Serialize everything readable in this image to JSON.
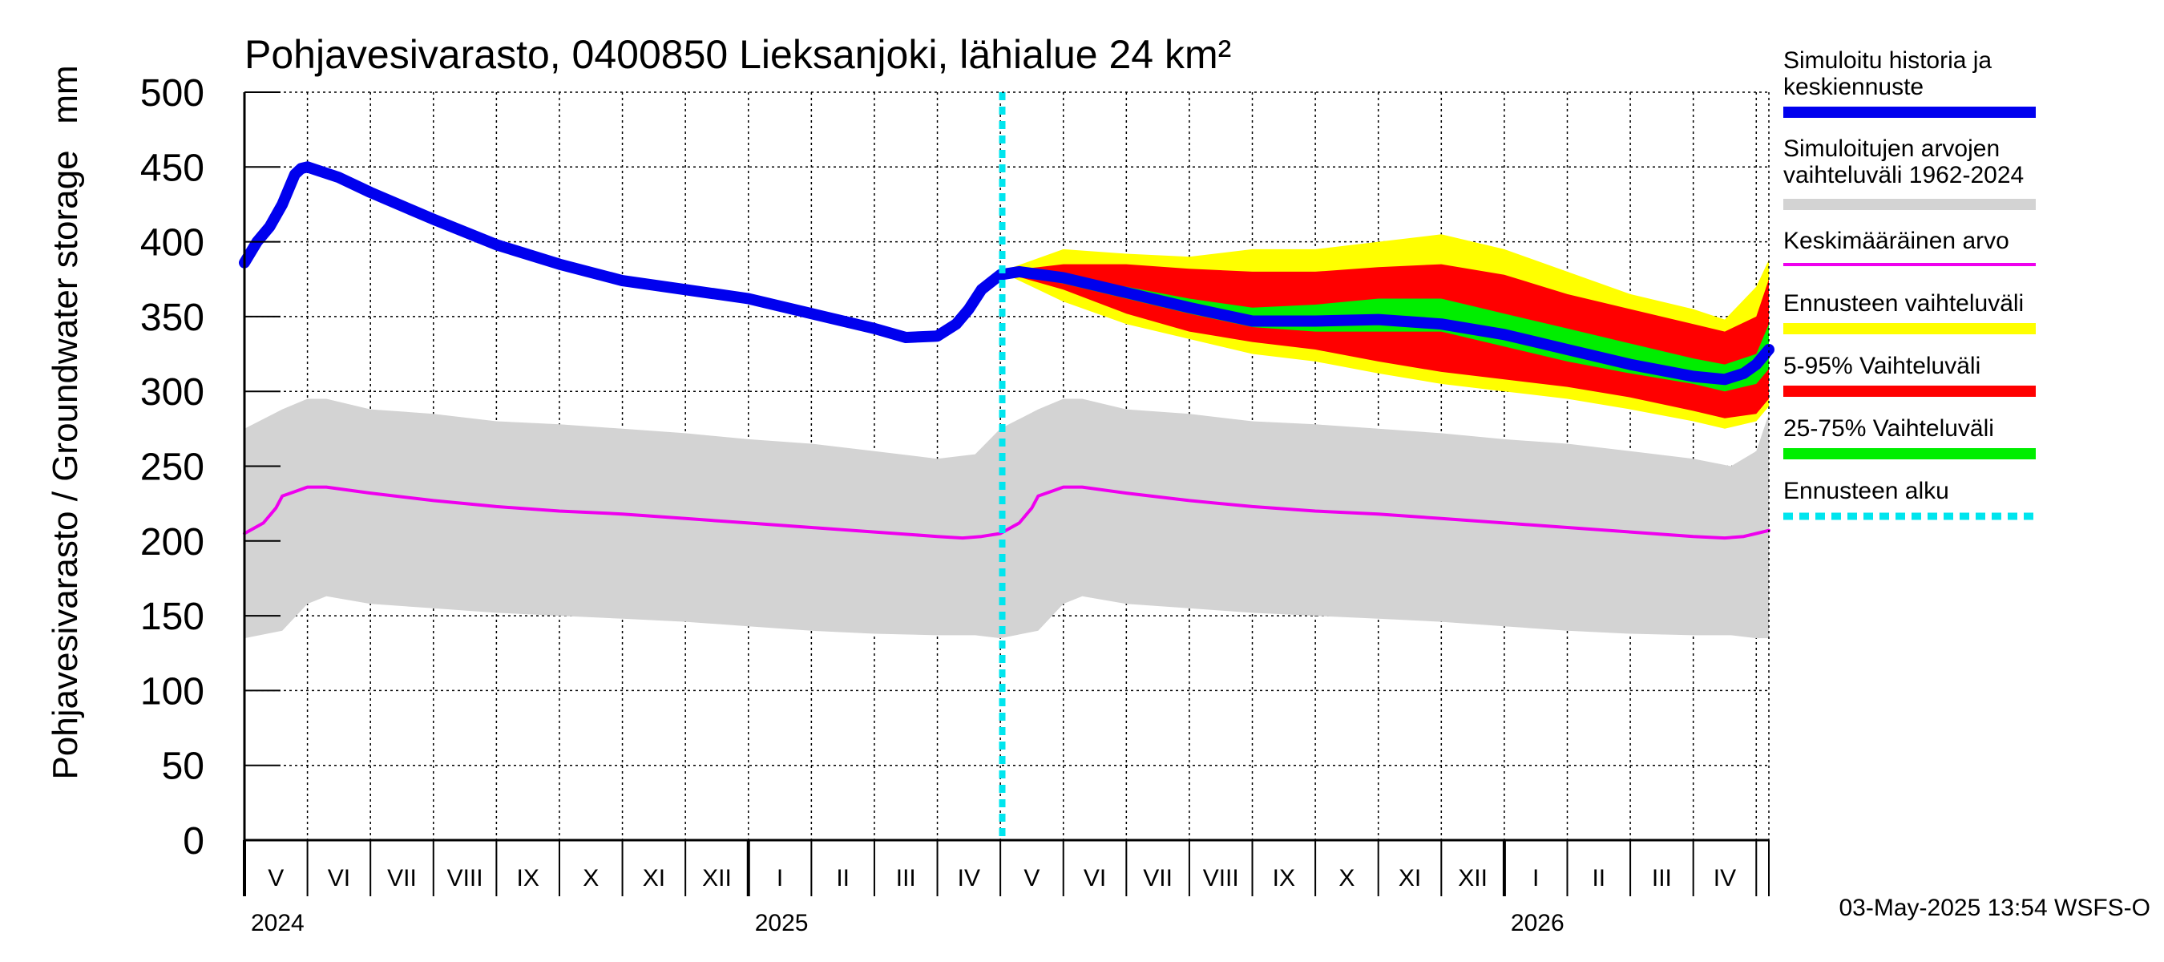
{
  "chart_data": {
    "type": "line",
    "title": "Pohjavesivarasto, 0400850 Lieksanjoki, lähialue 24 km²",
    "unit_label": "mm",
    "ylabel": "Pohjavesivarasto / Groundwater storage",
    "ylim": [
      0,
      500
    ],
    "y_ticks": [
      "0",
      "50",
      "100",
      "150",
      "200",
      "250",
      "300",
      "350",
      "400",
      "450",
      "500"
    ],
    "xlim": [
      0,
      24.2
    ],
    "months": [
      {
        "label": "V",
        "start": 0,
        "end": 1
      },
      {
        "label": "VI",
        "start": 1,
        "end": 2
      },
      {
        "label": "VII",
        "start": 2,
        "end": 3
      },
      {
        "label": "VIII",
        "start": 3,
        "end": 4
      },
      {
        "label": "IX",
        "start": 4,
        "end": 5
      },
      {
        "label": "X",
        "start": 5,
        "end": 6
      },
      {
        "label": "XI",
        "start": 6,
        "end": 7
      },
      {
        "label": "XII",
        "start": 7,
        "end": 8
      },
      {
        "label": "I",
        "start": 8,
        "end": 9
      },
      {
        "label": "II",
        "start": 9,
        "end": 10
      },
      {
        "label": "III",
        "start": 10,
        "end": 11
      },
      {
        "label": "IV",
        "start": 11,
        "end": 12
      },
      {
        "label": "V",
        "start": 12,
        "end": 13
      },
      {
        "label": "VI",
        "start": 13,
        "end": 14
      },
      {
        "label": "VII",
        "start": 14,
        "end": 15
      },
      {
        "label": "VIII",
        "start": 15,
        "end": 16
      },
      {
        "label": "IX",
        "start": 16,
        "end": 17
      },
      {
        "label": "X",
        "start": 17,
        "end": 18
      },
      {
        "label": "XI",
        "start": 18,
        "end": 19
      },
      {
        "label": "XII",
        "start": 19,
        "end": 20
      },
      {
        "label": "I",
        "start": 20,
        "end": 21
      },
      {
        "label": "II",
        "start": 21,
        "end": 22
      },
      {
        "label": "III",
        "start": 22,
        "end": 23
      },
      {
        "label": "IV",
        "start": 23,
        "end": 24
      },
      {
        "label": "",
        "start": 24,
        "end": 24.2
      }
    ],
    "years": [
      {
        "label": "2024",
        "at": 0
      },
      {
        "label": "2025",
        "at": 8
      },
      {
        "label": "2026",
        "at": 20
      }
    ],
    "forecast_start": 12.03,
    "series": [
      {
        "name": "Simuloitujen arvojen vaihteluväli 1962-2024",
        "kind": "band",
        "color": "#d3d3d3",
        "x": [
          0,
          0.6,
          1.0,
          1.3,
          2.0,
          3.0,
          4.0,
          5.0,
          6.0,
          7.0,
          8.0,
          9.0,
          10.0,
          11.0,
          11.6,
          12.0,
          12.6,
          13.0,
          13.3,
          14.0,
          15.0,
          16.0,
          17.0,
          18.0,
          19.0,
          20.0,
          21.0,
          22.0,
          23.0,
          23.6,
          24.0,
          24.2
        ],
        "upper": [
          275,
          288,
          295,
          295,
          288,
          285,
          280,
          278,
          275,
          272,
          268,
          265,
          260,
          255,
          258,
          275,
          288,
          295,
          295,
          288,
          285,
          280,
          278,
          275,
          272,
          268,
          265,
          260,
          255,
          250,
          260,
          285
        ],
        "lower": [
          135,
          140,
          158,
          163,
          158,
          155,
          152,
          150,
          148,
          146,
          143,
          140,
          138,
          137,
          137,
          135,
          140,
          158,
          163,
          158,
          155,
          152,
          150,
          148,
          146,
          143,
          140,
          138,
          137,
          137,
          135,
          135
        ]
      },
      {
        "name": "Ennusteen vaihteluväli",
        "kind": "band",
        "color": "#ffff00",
        "x": [
          12.0,
          13.0,
          14.0,
          15.0,
          16.0,
          17.0,
          18.0,
          19.0,
          20.0,
          21.0,
          22.0,
          23.0,
          23.5,
          24.0,
          24.2
        ],
        "upper": [
          380,
          395,
          392,
          390,
          395,
          395,
          400,
          405,
          395,
          380,
          365,
          355,
          348,
          370,
          388
        ],
        "lower": [
          380,
          360,
          345,
          335,
          325,
          320,
          312,
          305,
          300,
          295,
          288,
          280,
          275,
          280,
          290
        ]
      },
      {
        "name": "5-95% Vaihteluväli",
        "kind": "band",
        "color": "#ff0000",
        "x": [
          12.0,
          13.0,
          14.0,
          15.0,
          16.0,
          17.0,
          18.0,
          19.0,
          20.0,
          21.0,
          22.0,
          23.0,
          23.5,
          24.0,
          24.2
        ],
        "upper": [
          380,
          385,
          385,
          382,
          380,
          380,
          383,
          385,
          378,
          365,
          355,
          345,
          340,
          350,
          375
        ],
        "lower": [
          380,
          368,
          352,
          340,
          333,
          328,
          320,
          313,
          308,
          303,
          296,
          287,
          282,
          285,
          295
        ]
      },
      {
        "name": "25-75% Vaihteluväli",
        "kind": "band",
        "color": "#00ee00",
        "x": [
          12.0,
          13.0,
          14.0,
          15.0,
          16.0,
          17.0,
          18.0,
          19.0,
          20.0,
          21.0,
          22.0,
          23.0,
          23.5,
          24.0,
          24.2
        ],
        "upper": [
          380,
          376,
          370,
          362,
          356,
          358,
          362,
          362,
          352,
          342,
          332,
          322,
          318,
          325,
          345
        ],
        "lower": [
          380,
          372,
          362,
          352,
          343,
          340,
          340,
          340,
          330,
          320,
          312,
          305,
          300,
          305,
          315
        ]
      },
      {
        "name": "Keskimääräinen arvo",
        "kind": "line",
        "color": "#ee00ee",
        "width": 4,
        "x": [
          0,
          0.3,
          0.5,
          0.6,
          0.8,
          1.0,
          1.3,
          2.0,
          3.0,
          4.0,
          5.0,
          6.0,
          7.0,
          8.0,
          9.0,
          10.0,
          11.0,
          11.4,
          11.7,
          12.0,
          12.3,
          12.5,
          12.6,
          12.8,
          13.0,
          13.3,
          14.0,
          15.0,
          16.0,
          17.0,
          18.0,
          19.0,
          20.0,
          21.0,
          22.0,
          23.0,
          23.5,
          23.8,
          24.0,
          24.2
        ],
        "values": [
          205,
          212,
          222,
          230,
          233,
          236,
          236,
          232,
          227,
          223,
          220,
          218,
          215,
          212,
          209,
          206,
          203,
          202,
          203,
          205,
          212,
          222,
          230,
          233,
          236,
          236,
          232,
          227,
          223,
          220,
          218,
          215,
          212,
          209,
          206,
          203,
          202,
          203,
          205,
          207
        ]
      },
      {
        "name": "Simuloitu historia ja keskiennuste",
        "kind": "line",
        "color": "#0000ee",
        "width": 14,
        "x": [
          0,
          0.2,
          0.4,
          0.6,
          0.8,
          0.9,
          1.0,
          1.5,
          2.0,
          3.0,
          4.0,
          5.0,
          6.0,
          7.0,
          8.0,
          9.0,
          10.0,
          10.5,
          11.0,
          11.3,
          11.5,
          11.7,
          12.0,
          12.3,
          13.0,
          14.0,
          15.0,
          16.0,
          17.0,
          18.0,
          19.0,
          20.0,
          21.0,
          22.0,
          23.0,
          23.5,
          23.8,
          24.0,
          24.2
        ],
        "values": [
          386,
          400,
          410,
          425,
          445,
          449,
          450,
          443,
          433,
          415,
          398,
          385,
          374,
          368,
          362,
          352,
          342,
          336,
          337,
          345,
          355,
          368,
          378,
          380,
          376,
          366,
          356,
          347,
          347,
          348,
          345,
          338,
          328,
          318,
          310,
          308,
          312,
          318,
          328
        ]
      }
    ],
    "legend": [
      {
        "label_lines": [
          "Simuloitu historia ja",
          "keskiennuste"
        ],
        "color": "#0000ee",
        "style": "thick"
      },
      {
        "label_lines": [
          "Simuloitujen arvojen",
          "vaihteluväli 1962-2024"
        ],
        "color": "#d3d3d3",
        "style": "band"
      },
      {
        "label_lines": [
          "Keskimääräinen arvo"
        ],
        "color": "#ee00ee",
        "style": "thin"
      },
      {
        "label_lines": [
          "Ennusteen vaihteluväli"
        ],
        "color": "#ffff00",
        "style": "band"
      },
      {
        "label_lines": [
          "5-95% Vaihteluväli"
        ],
        "color": "#ff0000",
        "style": "band"
      },
      {
        "label_lines": [
          "25-75% Vaihteluväli"
        ],
        "color": "#00ee00",
        "style": "band"
      },
      {
        "label_lines": [
          "Ennusteen alku"
        ],
        "color": "#00e5ee",
        "style": "dashed"
      }
    ],
    "forecast_color": "#00e5ee"
  },
  "footer": "03-May-2025 13:54 WSFS-O"
}
